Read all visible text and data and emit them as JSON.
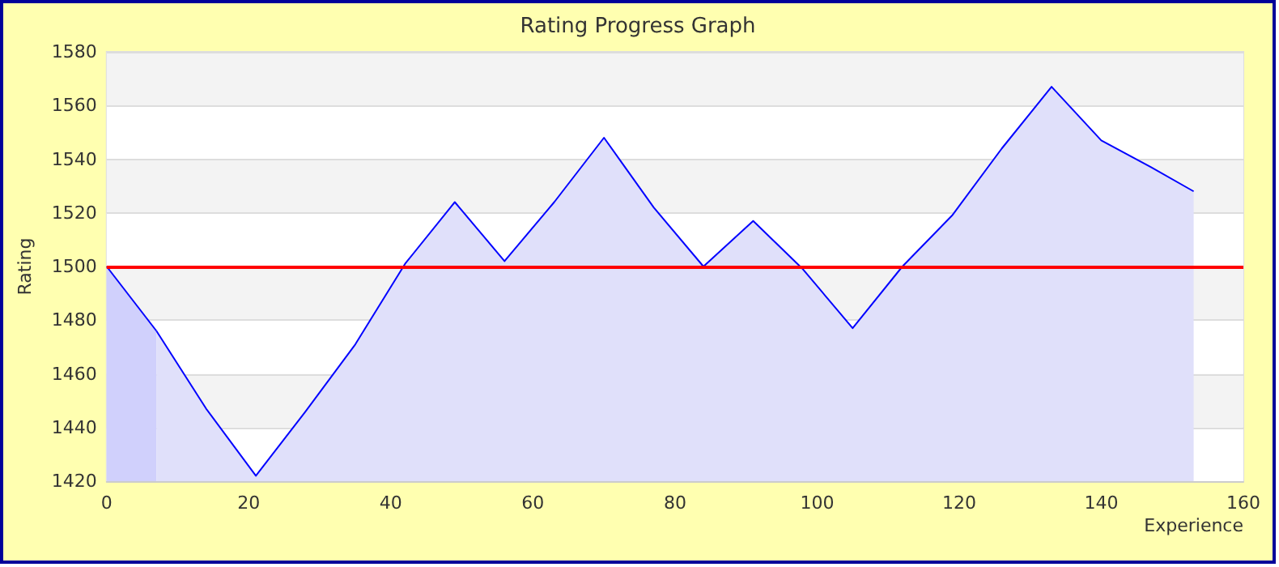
{
  "chart_data": {
    "type": "area",
    "title": "Rating Progress Graph",
    "xlabel": "Experience",
    "ylabel": "Rating",
    "series": [
      {
        "color": "#d0d0fc",
        "x": [
          0,
          7
        ],
        "values": [
          1500,
          1476
        ]
      },
      {
        "color": "#e0e0fa",
        "x": [
          7,
          14,
          21,
          28,
          35,
          42,
          49,
          56,
          63,
          70,
          77,
          84,
          91,
          98,
          105,
          112,
          119,
          126,
          133,
          140,
          147,
          153
        ],
        "values": [
          1476,
          1447,
          1422,
          1446,
          1471,
          1501,
          1524,
          1502,
          1524,
          1548,
          1522,
          1500,
          1517,
          1499,
          1477,
          1500,
          1519,
          1544,
          1567,
          1547,
          1537,
          1528
        ]
      }
    ],
    "xlim": [
      0,
      160
    ],
    "xticks": [
      0,
      20,
      40,
      60,
      80,
      100,
      120,
      140,
      160
    ],
    "ylim": [
      1420,
      1580
    ],
    "yticks": [
      1420,
      1440,
      1460,
      1480,
      1500,
      1520,
      1540,
      1560,
      1580
    ],
    "ref_lines": [
      {
        "axis": "y",
        "value": 1500,
        "color": "#ff0000"
      }
    ],
    "grid": "y"
  }
}
